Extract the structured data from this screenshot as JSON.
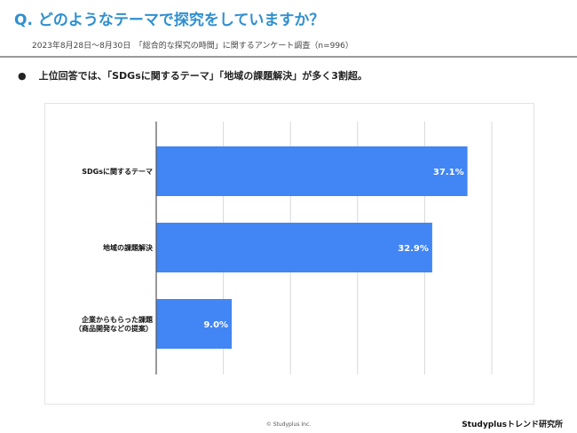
{
  "header": {
    "question": "Q. どのようなテーマで探究をしていますか？",
    "survey_note": "2023年8月28日〜8月30日　「総合的な探究の時間」に関するアンケート調査（n=996）"
  },
  "summary": {
    "bullet": "●",
    "text": "上位回答では、「SDGsに関するテーマ」「地域の課題解決」が多く3割超。"
  },
  "chart_data": {
    "type": "bar",
    "orientation": "horizontal",
    "categories": [
      [
        "SDGsに関するテーマ"
      ],
      [
        "地域の課題解決"
      ],
      [
        "企業からもらった課題",
        "（商品開発などの提案）"
      ]
    ],
    "values": [
      37.1,
      32.9,
      9.0
    ],
    "value_labels": [
      "37.1%",
      "32.9%",
      "9.0%"
    ],
    "xlim": [
      0,
      40
    ],
    "grid": true,
    "bar_color": "#4285f4",
    "grid_color": "#d9d9d9",
    "axis_color": "#555555"
  },
  "footer": {
    "copyright": "© Studyplus Inc.",
    "brand": "Studyplusトレンド研究所"
  }
}
